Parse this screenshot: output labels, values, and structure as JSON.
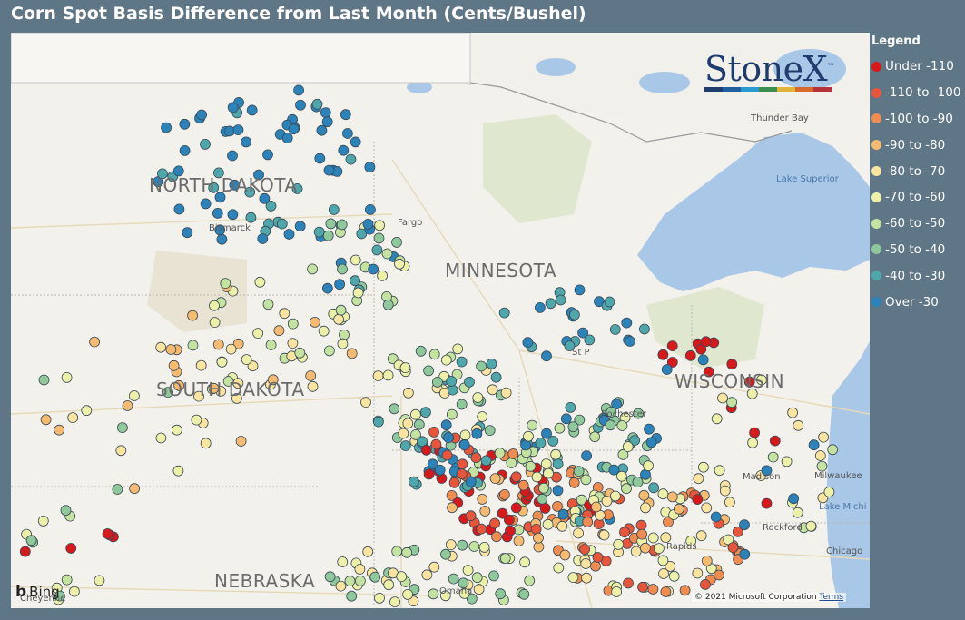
{
  "title": "Corn Spot Basis Difference from Last Month (Cents/Bushel)",
  "legend": {
    "title": "Legend",
    "items": [
      {
        "label": "Under -110",
        "color": "#d7191c"
      },
      {
        "label": "-110 to -100",
        "color": "#e8553a"
      },
      {
        "label": "-100 to -90",
        "color": "#f08c4f"
      },
      {
        "label": "-90 to -80",
        "color": "#f6bb70"
      },
      {
        "label": "-80 to -70",
        "color": "#fbe3a0"
      },
      {
        "label": "-70 to -60",
        "color": "#ecf0a8"
      },
      {
        "label": "-60 to -50",
        "color": "#c4e2a0"
      },
      {
        "label": "-50 to -40",
        "color": "#8fc89a"
      },
      {
        "label": "-40 to -30",
        "color": "#4fa6ab"
      },
      {
        "label": "Over -30",
        "color": "#2b83ba"
      }
    ]
  },
  "map_labels": {
    "north_dakota": "NORTH DAKOTA",
    "minnesota": "MINNESOTA",
    "south_dakota": "SOUTH DAKOTA",
    "wisconsin": "WISCONSIN",
    "nebraska": "NEBRASKA",
    "bismarck": "Bismarck",
    "fargo": "Fargo",
    "thunder_bay": "Thunder Bay",
    "lake_superior": "Lake Superior",
    "st_paul": "St P",
    "rochester": "Rochester",
    "madison": "Madison",
    "milwaukee": "Milwaukee",
    "lake_michigan": "Lake Michi",
    "rockford": "Rockford",
    "cedar_rapids": "Rapids",
    "chicago": "Chicago",
    "omaha": "Omaha",
    "cheyenne": "Cheyenne"
  },
  "logo": {
    "text": "StoneX",
    "tm": "™"
  },
  "attribution": {
    "bing": "Bing",
    "copyright": "© 2021 Microsoft Corporation",
    "terms": "Terms"
  }
}
